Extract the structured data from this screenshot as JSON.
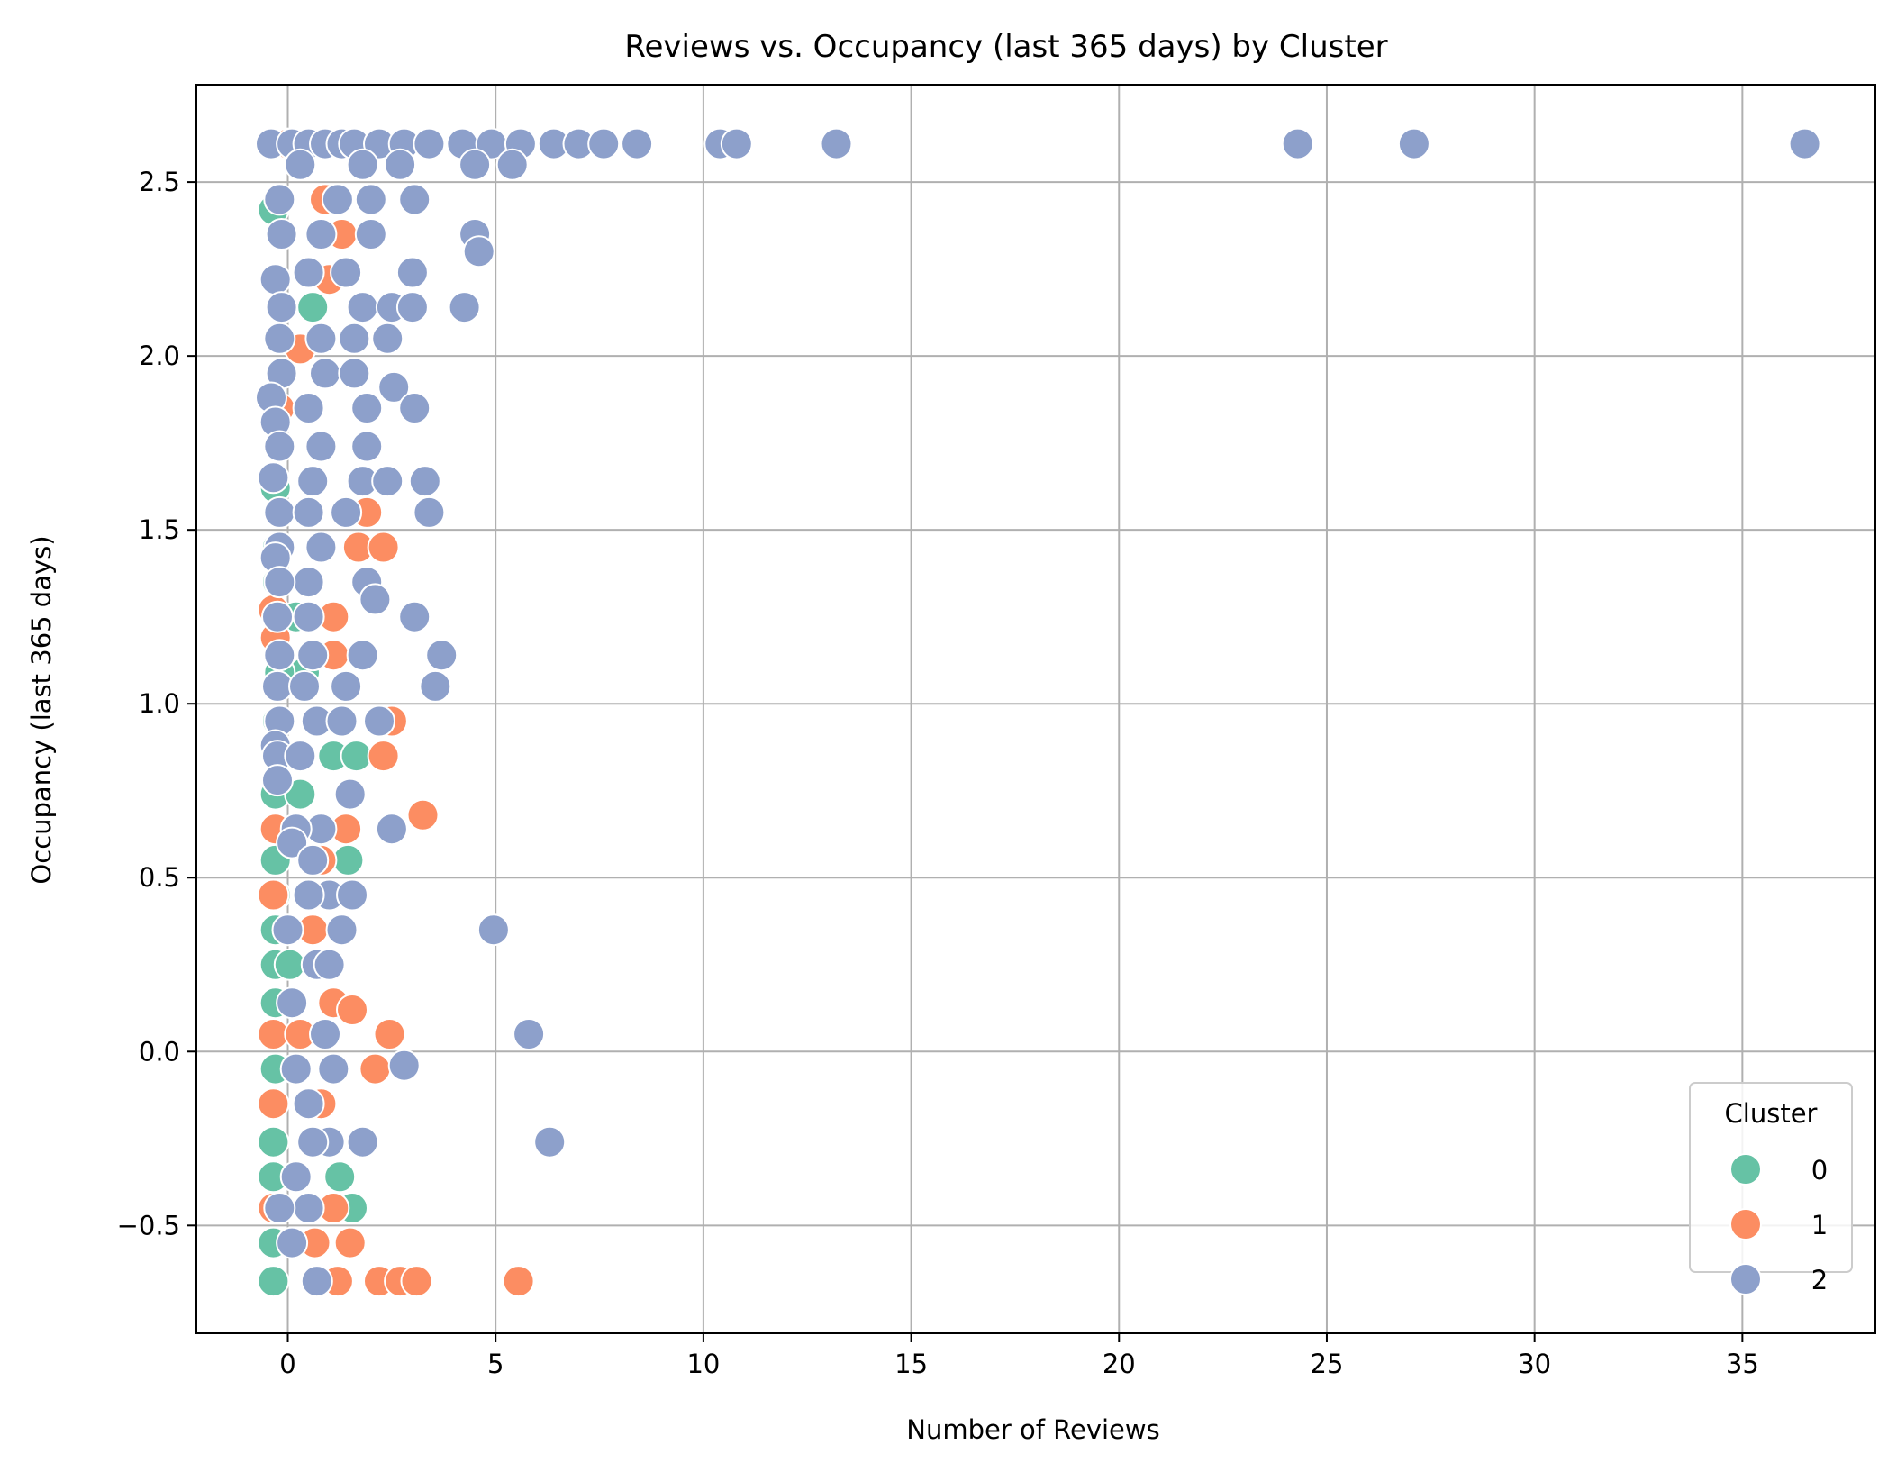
{
  "chart_data": {
    "type": "scatter",
    "title": "Reviews vs. Occupancy (last 365 days) by Cluster",
    "xlabel": "Number of Reviews",
    "ylabel": "Occupancy (last 365 days)",
    "xlim": [
      -2.2,
      38.2
    ],
    "ylim": [
      -0.81,
      2.78
    ],
    "xticks": [
      0,
      5,
      10,
      15,
      20,
      25,
      30,
      35
    ],
    "xtick_labels": [
      "0",
      "5",
      "10",
      "15",
      "20",
      "25",
      "30",
      "35"
    ],
    "yticks": [
      -0.5,
      0.0,
      0.5,
      1.0,
      1.5,
      2.0,
      2.5
    ],
    "ytick_labels": [
      "−0.5",
      "0.0",
      "0.5",
      "1.0",
      "1.5",
      "2.0",
      "2.5"
    ],
    "grid": true,
    "legend": {
      "title": "Cluster",
      "placement": "lower-right"
    },
    "series": [
      {
        "name": "0",
        "color": "#66c2a5",
        "points": [
          [
            -0.35,
            2.42
          ],
          [
            0.6,
            2.14
          ],
          [
            -0.3,
            1.62
          ],
          [
            -0.25,
            1.45
          ],
          [
            -0.25,
            1.35
          ],
          [
            0.2,
            1.25
          ],
          [
            0.4,
            1.09
          ],
          [
            -0.2,
            1.09
          ],
          [
            -0.25,
            0.95
          ],
          [
            1.1,
            0.85
          ],
          [
            1.65,
            0.85
          ],
          [
            -0.3,
            0.74
          ],
          [
            0.3,
            0.74
          ],
          [
            1.45,
            0.55
          ],
          [
            -0.3,
            0.55
          ],
          [
            -0.3,
            0.45
          ],
          [
            -0.3,
            0.35
          ],
          [
            -0.3,
            0.25
          ],
          [
            0.05,
            0.25
          ],
          [
            -0.3,
            0.14
          ],
          [
            -0.3,
            -0.05
          ],
          [
            -0.35,
            -0.26
          ],
          [
            -0.35,
            -0.36
          ],
          [
            1.25,
            -0.36
          ],
          [
            1.55,
            -0.45
          ],
          [
            -0.35,
            -0.55
          ],
          [
            -0.35,
            -0.66
          ]
        ]
      },
      {
        "name": "1",
        "color": "#fc8d62",
        "points": [
          [
            0.0,
            2.61
          ],
          [
            0.9,
            2.45
          ],
          [
            1.3,
            2.35
          ],
          [
            1.0,
            2.22
          ],
          [
            0.3,
            2.02
          ],
          [
            -0.2,
            1.85
          ],
          [
            1.9,
            1.55
          ],
          [
            1.7,
            1.45
          ],
          [
            2.3,
            1.45
          ],
          [
            -0.35,
            1.27
          ],
          [
            1.1,
            1.25
          ],
          [
            -0.3,
            1.19
          ],
          [
            1.1,
            1.14
          ],
          [
            2.5,
            0.95
          ],
          [
            2.3,
            0.85
          ],
          [
            3.25,
            0.68
          ],
          [
            -0.3,
            0.64
          ],
          [
            1.4,
            0.64
          ],
          [
            0.8,
            0.55
          ],
          [
            -0.35,
            0.45
          ],
          [
            0.6,
            0.35
          ],
          [
            1.1,
            0.14
          ],
          [
            1.55,
            0.12
          ],
          [
            -0.35,
            0.05
          ],
          [
            2.45,
            0.05
          ],
          [
            0.3,
            0.05
          ],
          [
            2.1,
            -0.05
          ],
          [
            -0.35,
            -0.15
          ],
          [
            0.8,
            -0.15
          ],
          [
            -0.35,
            -0.45
          ],
          [
            1.1,
            -0.45
          ],
          [
            1.5,
            -0.55
          ],
          [
            0.65,
            -0.55
          ],
          [
            1.2,
            -0.66
          ],
          [
            2.2,
            -0.66
          ],
          [
            2.7,
            -0.66
          ],
          [
            3.1,
            -0.66
          ],
          [
            5.55,
            -0.66
          ]
        ]
      },
      {
        "name": "2",
        "color": "#8da0cb",
        "points": [
          [
            -0.4,
            2.61
          ],
          [
            0.1,
            2.61
          ],
          [
            0.5,
            2.61
          ],
          [
            0.9,
            2.61
          ],
          [
            1.3,
            2.61
          ],
          [
            1.6,
            2.61
          ],
          [
            2.2,
            2.61
          ],
          [
            2.8,
            2.61
          ],
          [
            3.4,
            2.61
          ],
          [
            4.2,
            2.61
          ],
          [
            4.9,
            2.61
          ],
          [
            5.6,
            2.61
          ],
          [
            6.4,
            2.61
          ],
          [
            7.0,
            2.61
          ],
          [
            7.6,
            2.61
          ],
          [
            8.4,
            2.61
          ],
          [
            10.4,
            2.61
          ],
          [
            10.8,
            2.61
          ],
          [
            13.2,
            2.61
          ],
          [
            24.3,
            2.61
          ],
          [
            27.1,
            2.61
          ],
          [
            36.5,
            2.61
          ],
          [
            0.3,
            2.55
          ],
          [
            1.8,
            2.55
          ],
          [
            2.7,
            2.55
          ],
          [
            4.5,
            2.55
          ],
          [
            5.4,
            2.55
          ],
          [
            -0.2,
            2.45
          ],
          [
            1.2,
            2.45
          ],
          [
            2.0,
            2.45
          ],
          [
            3.05,
            2.45
          ],
          [
            -0.15,
            2.35
          ],
          [
            0.8,
            2.35
          ],
          [
            2.0,
            2.35
          ],
          [
            4.5,
            2.35
          ],
          [
            4.6,
            2.3
          ],
          [
            -0.3,
            2.22
          ],
          [
            0.5,
            2.24
          ],
          [
            1.4,
            2.24
          ],
          [
            3.0,
            2.24
          ],
          [
            -0.15,
            2.14
          ],
          [
            1.8,
            2.14
          ],
          [
            2.5,
            2.14
          ],
          [
            3.0,
            2.14
          ],
          [
            4.25,
            2.14
          ],
          [
            -0.2,
            2.05
          ],
          [
            0.8,
            2.05
          ],
          [
            1.6,
            2.05
          ],
          [
            2.4,
            2.05
          ],
          [
            -0.15,
            1.95
          ],
          [
            0.9,
            1.95
          ],
          [
            1.6,
            1.95
          ],
          [
            -0.4,
            1.88
          ],
          [
            2.55,
            1.91
          ],
          [
            -0.3,
            1.81
          ],
          [
            0.5,
            1.85
          ],
          [
            1.9,
            1.85
          ],
          [
            3.05,
            1.85
          ],
          [
            -0.2,
            1.74
          ],
          [
            0.8,
            1.74
          ],
          [
            1.9,
            1.74
          ],
          [
            -0.35,
            1.65
          ],
          [
            0.6,
            1.64
          ],
          [
            1.8,
            1.64
          ],
          [
            2.4,
            1.64
          ],
          [
            3.3,
            1.64
          ],
          [
            -0.2,
            1.55
          ],
          [
            0.5,
            1.55
          ],
          [
            1.4,
            1.55
          ],
          [
            3.4,
            1.55
          ],
          [
            -0.2,
            1.45
          ],
          [
            0.8,
            1.45
          ],
          [
            -0.3,
            1.42
          ],
          [
            0.5,
            1.35
          ],
          [
            1.9,
            1.35
          ],
          [
            -0.2,
            1.35
          ],
          [
            2.1,
            1.3
          ],
          [
            -0.25,
            1.25
          ],
          [
            0.5,
            1.25
          ],
          [
            3.05,
            1.25
          ],
          [
            1.8,
            1.14
          ],
          [
            -0.2,
            1.14
          ],
          [
            0.6,
            1.14
          ],
          [
            3.7,
            1.14
          ],
          [
            -0.25,
            1.05
          ],
          [
            1.4,
            1.05
          ],
          [
            3.55,
            1.05
          ],
          [
            0.4,
            1.05
          ],
          [
            -0.2,
            0.95
          ],
          [
            0.7,
            0.95
          ],
          [
            1.3,
            0.95
          ],
          [
            2.2,
            0.95
          ],
          [
            -0.3,
            0.88
          ],
          [
            -0.25,
            0.85
          ],
          [
            0.3,
            0.85
          ],
          [
            -0.25,
            0.78
          ],
          [
            1.5,
            0.74
          ],
          [
            0.8,
            0.64
          ],
          [
            0.2,
            0.64
          ],
          [
            2.5,
            0.64
          ],
          [
            0.1,
            0.6
          ],
          [
            0.6,
            0.55
          ],
          [
            1.0,
            0.45
          ],
          [
            1.55,
            0.45
          ],
          [
            0.5,
            0.45
          ],
          [
            1.3,
            0.35
          ],
          [
            0.0,
            0.35
          ],
          [
            4.95,
            0.35
          ],
          [
            0.7,
            0.25
          ],
          [
            1.0,
            0.25
          ],
          [
            0.1,
            0.14
          ],
          [
            0.9,
            0.05
          ],
          [
            5.8,
            0.05
          ],
          [
            0.2,
            -0.05
          ],
          [
            1.1,
            -0.05
          ],
          [
            2.8,
            -0.04
          ],
          [
            0.5,
            -0.15
          ],
          [
            1.8,
            -0.26
          ],
          [
            1.0,
            -0.26
          ],
          [
            0.6,
            -0.26
          ],
          [
            0.2,
            -0.36
          ],
          [
            6.3,
            -0.26
          ],
          [
            0.5,
            -0.45
          ],
          [
            -0.2,
            -0.45
          ],
          [
            0.1,
            -0.55
          ],
          [
            0.7,
            -0.66
          ]
        ]
      }
    ]
  }
}
